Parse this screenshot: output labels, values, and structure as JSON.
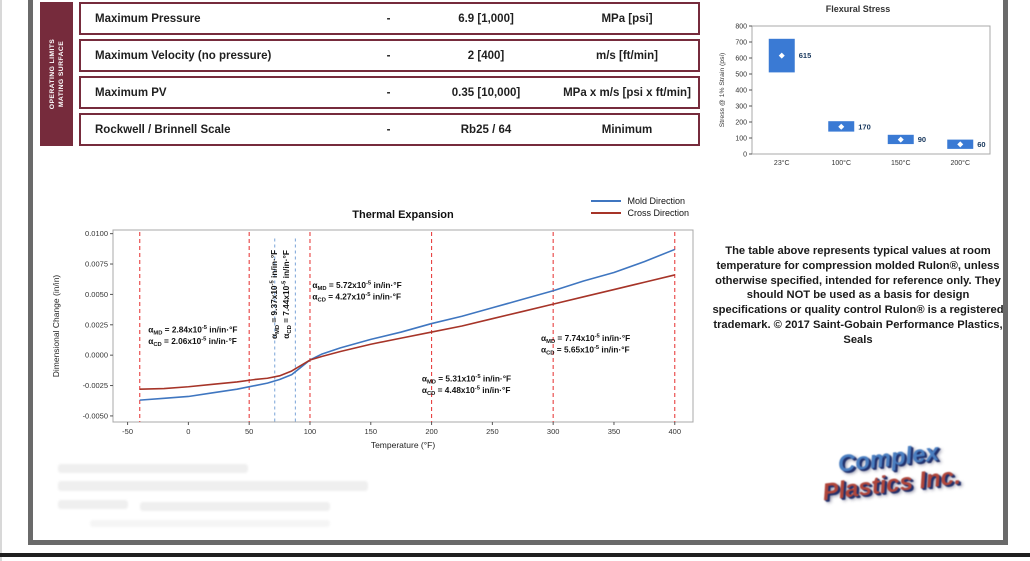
{
  "table": {
    "side_label_line1": "OPERATING LIMITS",
    "side_label_line2": "MATING SURFACE",
    "accent_color": "#762b3c",
    "rows": [
      {
        "property": "Maximum Pressure",
        "basis": "-",
        "value": "6.9 [1,000]",
        "units": "MPa [psi]"
      },
      {
        "property": "Maximum Velocity (no pressure)",
        "basis": "-",
        "value": "2 [400]",
        "units": "m/s [ft/min]"
      },
      {
        "property": "Maximum PV",
        "basis": "-",
        "value": "0.35 [10,000]",
        "units": "MPa x m/s [psi x ft/min]"
      },
      {
        "property": "Rockwell / Brinnell Scale",
        "basis": "-",
        "value": "Rb25 / 64",
        "units": "Minimum"
      }
    ]
  },
  "chart_data": [
    {
      "type": "bar",
      "title": "Flexural Stress",
      "ylabel": "Stress @ 1% Strain (psi)",
      "ylim": [
        0,
        800
      ],
      "yticks": [
        0,
        100,
        200,
        300,
        400,
        500,
        600,
        700,
        800
      ],
      "categories": [
        "23°C",
        "100°C",
        "150°C",
        "200°C"
      ],
      "values": [
        615,
        170,
        90,
        60
      ],
      "ranges": [
        [
          510,
          720
        ],
        [
          140,
          205
        ],
        [
          62,
          120
        ],
        [
          32,
          90
        ]
      ],
      "bar_color": "#3a7ad4",
      "label_color": "#17375d",
      "grid": false,
      "legend_position": "none"
    },
    {
      "type": "line",
      "title": "Thermal Expansion",
      "xlabel": "Temperature (°F)",
      "ylabel": "Dimensional Change (in/in)",
      "xlim": [
        -62,
        415
      ],
      "ylim": [
        -0.0055,
        0.0103
      ],
      "xticks": [
        -50,
        0,
        50,
        100,
        150,
        200,
        250,
        300,
        350,
        400
      ],
      "yticks": [
        0.01,
        0.0075,
        0.005,
        0.0025,
        0.0,
        -0.0025,
        -0.005
      ],
      "ytick_labels": [
        "0.0100",
        "0.0075",
        "0.0050",
        "0.0025",
        "0.0000",
        "-0.0025",
        "-0.0050"
      ],
      "grid": false,
      "legend_position": "top-right",
      "series": [
        {
          "name": "Mold Direction",
          "color": "#3f76c0",
          "points": [
            [
              -40,
              -0.0037
            ],
            [
              -20,
              -0.00355
            ],
            [
              0,
              -0.0034
            ],
            [
              20,
              -0.0031
            ],
            [
              40,
              -0.0028
            ],
            [
              55,
              -0.0025
            ],
            [
              65,
              -0.0023
            ],
            [
              75,
              -0.002
            ],
            [
              85,
              -0.0016
            ],
            [
              95,
              -0.0008
            ],
            [
              100,
              -0.0004
            ],
            [
              110,
              0.0001
            ],
            [
              125,
              0.0006
            ],
            [
              150,
              0.0013
            ],
            [
              175,
              0.0019
            ],
            [
              200,
              0.0026
            ],
            [
              225,
              0.0032
            ],
            [
              250,
              0.0039
            ],
            [
              275,
              0.0046
            ],
            [
              300,
              0.0053
            ],
            [
              325,
              0.0061
            ],
            [
              350,
              0.0068
            ],
            [
              375,
              0.0077
            ],
            [
              400,
              0.0087
            ]
          ]
        },
        {
          "name": "Cross Direction",
          "color": "#a63428",
          "points": [
            [
              -40,
              -0.0028
            ],
            [
              -20,
              -0.00275
            ],
            [
              0,
              -0.0026
            ],
            [
              20,
              -0.0024
            ],
            [
              40,
              -0.0022
            ],
            [
              55,
              -0.002
            ],
            [
              65,
              -0.0019
            ],
            [
              75,
              -0.0017
            ],
            [
              85,
              -0.0013
            ],
            [
              95,
              -0.0007
            ],
            [
              100,
              -0.0004
            ],
            [
              110,
              -0.0001
            ],
            [
              125,
              0.0003
            ],
            [
              150,
              0.0009
            ],
            [
              175,
              0.0014
            ],
            [
              200,
              0.0019
            ],
            [
              225,
              0.0024
            ],
            [
              250,
              0.003
            ],
            [
              275,
              0.0036
            ],
            [
              300,
              0.0042
            ],
            [
              325,
              0.0048
            ],
            [
              350,
              0.0054
            ],
            [
              375,
              0.006
            ],
            [
              400,
              0.0066
            ]
          ]
        }
      ],
      "red_dashed_x": [
        -40,
        50,
        100,
        200,
        300,
        400
      ],
      "blue_dashed_x": [
        71,
        88
      ],
      "alpha": "α",
      "exponent": "-5",
      "unit": "in/in·°F",
      "sub_md": "MD",
      "sub_cd": "CD",
      "annotations": [
        {
          "x": -33,
          "y": 0.0016,
          "md": "2.84",
          "cd": "2.06",
          "rotated": false
        },
        {
          "x": 76,
          "y": 0.005,
          "md": "9.37",
          "cd": "7.44",
          "rotated": true
        },
        {
          "x": 102,
          "y": 0.0053,
          "md": "5.72",
          "cd": "4.27",
          "rotated": false
        },
        {
          "x": 192,
          "y": -0.0024,
          "md": "5.31",
          "cd": "4.48",
          "rotated": false
        },
        {
          "x": 290,
          "y": 0.0009,
          "md": "7.74",
          "cd": "5.65",
          "rotated": false
        }
      ]
    }
  ],
  "note": {
    "text": "The table above represents typical values at room temperature for compression molded Rulon®, unless otherwise specified, intended for reference only. They should NOT be used as a basis for design specifications or quality control Rulon® is a registered trademark. © 2017 Saint-Gobain Performance Plastics, Seals"
  },
  "logo": {
    "line1": "Complex",
    "line2": "Plastics Inc."
  }
}
